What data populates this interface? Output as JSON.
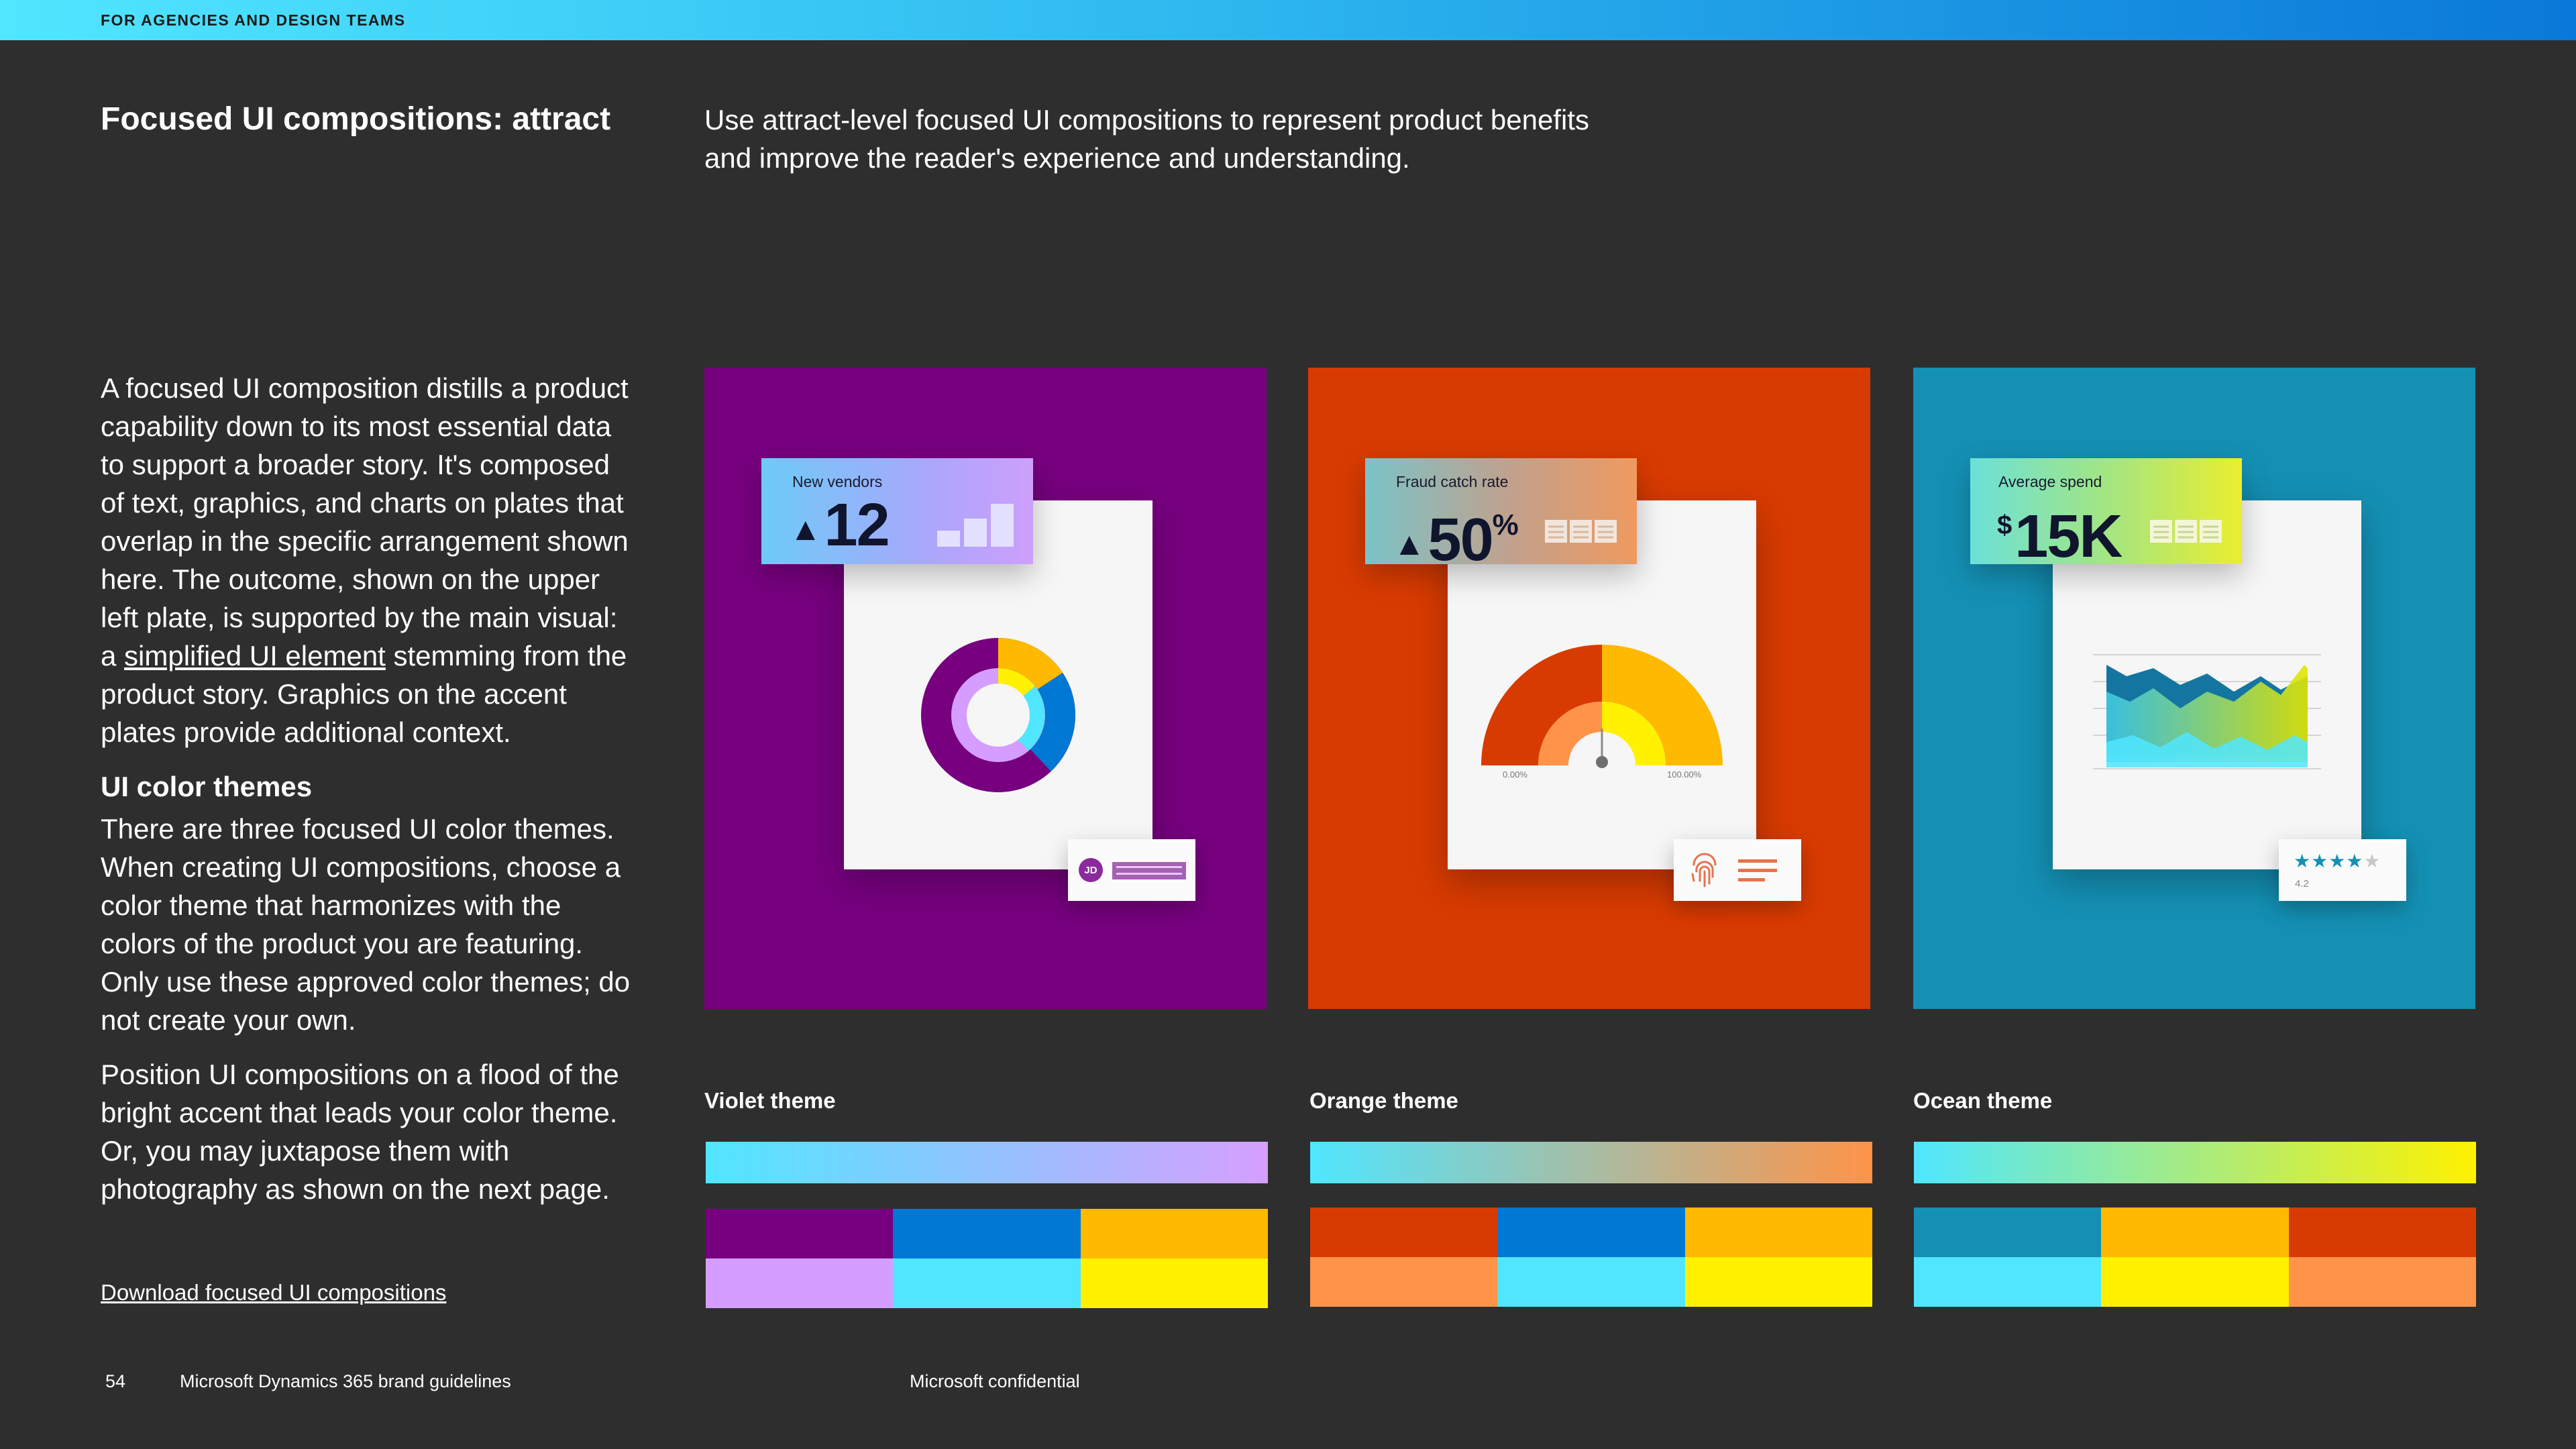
{
  "header": {
    "label": "FOR AGENCIES AND DESIGN TEAMS"
  },
  "title": "Focused UI compositions: attract",
  "intro": "Use attract-level focused UI compositions to represent product benefits and improve the reader's experience and understanding.",
  "body": {
    "para1_before": "A focused UI composition distills a product capability down to its most essential data to support a broader story. It's composed of text, graphics, and charts on plates that overlap in the specific arrangement shown here. The outcome, shown on the upper left plate, is supported by the main visual: a ",
    "para1_link": "simplified UI element",
    "para1_after": " stemming from the product story. Graphics on the accent plates provide additional context.",
    "subheading": "UI color themes",
    "para2": "There are three focused UI color themes. When creating UI compositions, choose a color theme that harmonizes with the colors of the product you are featuring. Only use these approved color themes; do not create your own.",
    "para3": "Position UI compositions on a flood of the bright accent that leads your color theme. Or, you may juxtapose them with photography as shown on the next page.",
    "download_link": "Download focused UI compositions"
  },
  "footer": {
    "page_number": "54",
    "doc_title": "Microsoft Dynamics 365 brand guidelines",
    "confidential": "Microsoft confidential"
  },
  "compositions": {
    "violet": {
      "kpi_label": "New vendors",
      "kpi_value": "12",
      "avatar_initials": "JD",
      "donut_percents": [
        35,
        10,
        55
      ]
    },
    "orange": {
      "kpi_label": "Fraud catch rate",
      "kpi_value": "50",
      "kpi_unit": "%",
      "gauge_min": "0.00%",
      "gauge_max": "100.00%"
    },
    "ocean": {
      "kpi_label": "Average spend",
      "kpi_currency": "$",
      "kpi_value": "15K",
      "rating_stars": "★★★★",
      "rating_star_empty": "★",
      "rating_value": "4.2"
    }
  },
  "themes": [
    {
      "name": "Violet theme",
      "plate_color": "#77007f",
      "gradient": [
        "#50e6ff",
        "#d69fff"
      ],
      "swatches": [
        [
          "#77007f",
          "#0078d4",
          "#ffb900"
        ],
        [
          "#d59dff",
          "#50e6ff",
          "#fff100"
        ]
      ]
    },
    {
      "name": "Orange theme",
      "plate_color": "#d83b01",
      "gradient": [
        "#50e6ff",
        "#ff9349"
      ],
      "swatches": [
        [
          "#d83b01",
          "#0078d4",
          "#ffb900"
        ],
        [
          "#ff9349",
          "#50e6ff",
          "#fff100"
        ]
      ]
    },
    {
      "name": "Ocean theme",
      "plate_color": "#1490b4",
      "gradient": [
        "#50e6ff",
        "#fff100"
      ],
      "swatches": [
        [
          "#1490b4",
          "#ffb900",
          "#d83b01"
        ],
        [
          "#50e6ff",
          "#fff100",
          "#ff9349"
        ]
      ]
    }
  ]
}
